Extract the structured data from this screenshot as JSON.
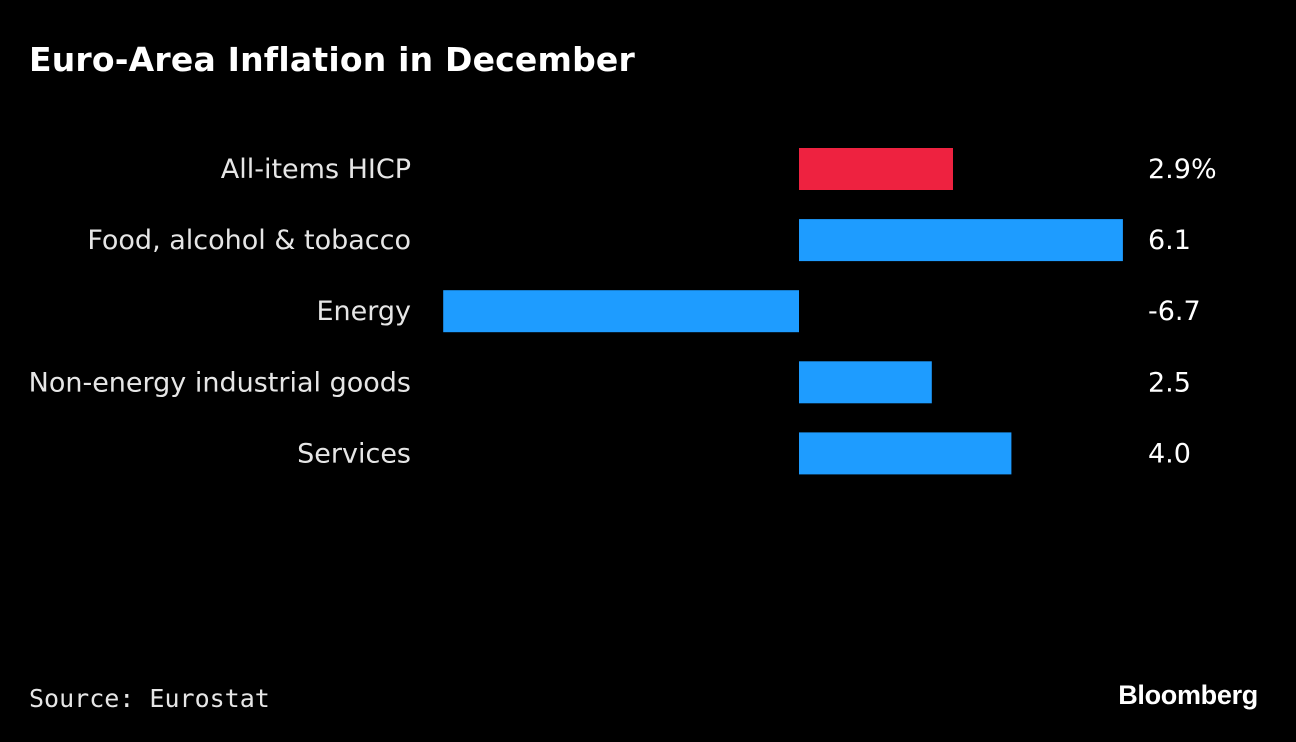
{
  "header": {
    "title": "Euro-Area Inflation in December"
  },
  "footer": {
    "source": "Source: Eurostat",
    "brand": "Bloomberg"
  },
  "colors": {
    "highlight": "#EE2240",
    "default": "#1E9CFF",
    "background": "#000000"
  },
  "chart_data": {
    "type": "bar",
    "orientation": "horizontal",
    "title": "Euro-Area Inflation in December",
    "xlabel": "",
    "ylabel": "",
    "unit": "%",
    "categories": [
      "All-items HICP",
      "Food, alcohol & tobacco",
      "Energy",
      "Non-energy industrial goods",
      "Services"
    ],
    "values": [
      2.9,
      6.1,
      -6.7,
      2.5,
      4.0
    ],
    "value_labels": [
      "2.9%",
      "6.1",
      "-6.7",
      "2.5",
      "4.0"
    ],
    "highlight_index": 0,
    "xlim": [
      -6.7,
      6.1
    ],
    "grid": false,
    "legend": "none",
    "source": "Source: Eurostat"
  }
}
